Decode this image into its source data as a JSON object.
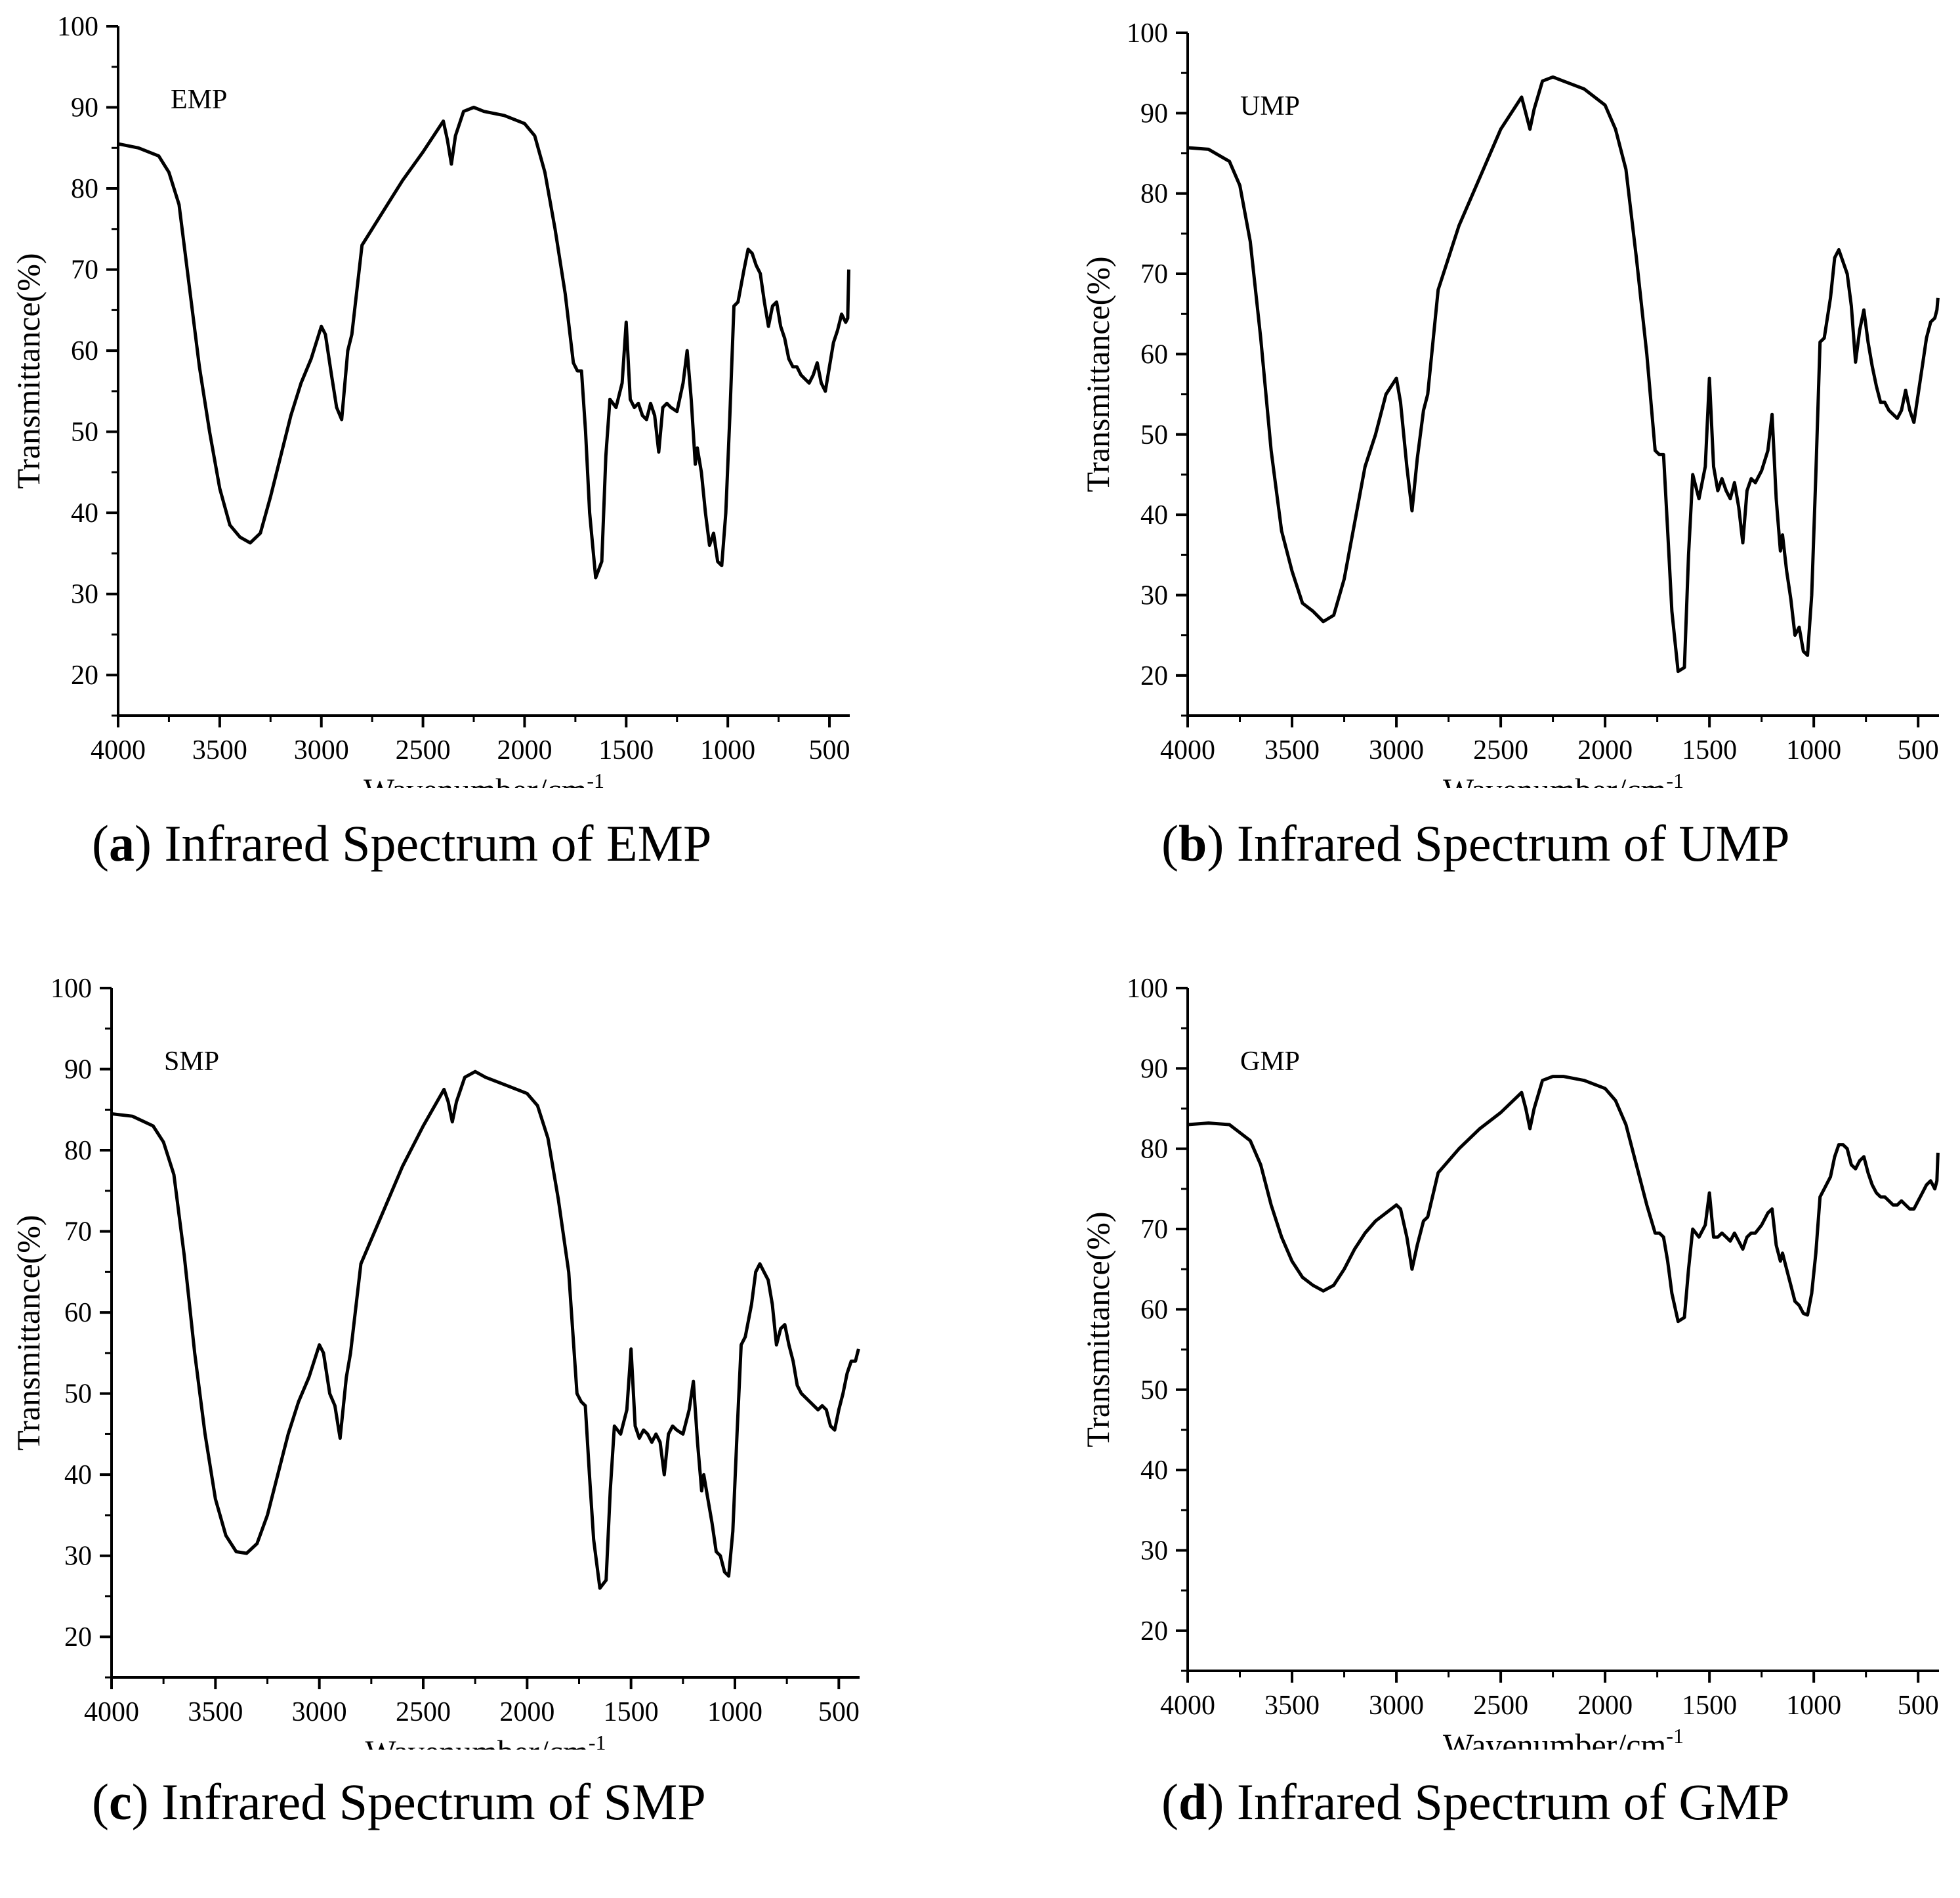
{
  "chart_data": [
    {
      "type": "line",
      "panel_letter": "a",
      "caption_text": " Infrared Spectrum of EMP",
      "paren_open": "(",
      "paren_close": ")",
      "series_label": "EMP",
      "xlabel": "Wavenumber/cm",
      "xlabel_sup": "-1",
      "ylabel": "Transmittance(%)",
      "xlim": [
        4000,
        400
      ],
      "ylim": [
        15,
        100
      ],
      "xticks": [
        4000,
        3500,
        3000,
        2500,
        2000,
        1500,
        1000,
        500
      ],
      "yticks": [
        20,
        30,
        40,
        50,
        60,
        70,
        80,
        90,
        100
      ],
      "x": [
        4000,
        3900,
        3800,
        3750,
        3700,
        3650,
        3600,
        3550,
        3500,
        3450,
        3400,
        3350,
        3300,
        3250,
        3200,
        3150,
        3100,
        3050,
        3000,
        2980,
        2950,
        2925,
        2900,
        2870,
        2850,
        2800,
        2700,
        2600,
        2500,
        2400,
        2380,
        2360,
        2340,
        2300,
        2250,
        2200,
        2100,
        2000,
        1950,
        1900,
        1850,
        1800,
        1760,
        1740,
        1720,
        1700,
        1680,
        1650,
        1620,
        1600,
        1580,
        1550,
        1520,
        1500,
        1480,
        1460,
        1440,
        1420,
        1400,
        1380,
        1360,
        1340,
        1320,
        1300,
        1280,
        1250,
        1220,
        1200,
        1180,
        1160,
        1150,
        1130,
        1110,
        1090,
        1070,
        1050,
        1030,
        1010,
        990,
        970,
        950,
        920,
        900,
        880,
        860,
        840,
        820,
        800,
        780,
        760,
        740,
        720,
        700,
        680,
        660,
        640,
        620,
        600,
        580,
        560,
        540,
        520,
        500,
        480,
        460,
        440,
        420,
        410,
        405
      ],
      "y": [
        85.5,
        85,
        84,
        82,
        78,
        68,
        58,
        50,
        43,
        38.5,
        37,
        36.3,
        37.5,
        42,
        47,
        52,
        56,
        59,
        63,
        62,
        57,
        53,
        51.5,
        60,
        62,
        73,
        77,
        81,
        84.5,
        88.3,
        86,
        83,
        86.5,
        89.5,
        90,
        89.5,
        89,
        88,
        86.5,
        82,
        75,
        67,
        58.5,
        57.5,
        57.5,
        50,
        40,
        32,
        34,
        47,
        54,
        53,
        56,
        63.5,
        54,
        53,
        53.5,
        52,
        51.5,
        53.5,
        52,
        47.5,
        53,
        53.5,
        53,
        52.5,
        56,
        60,
        54,
        46,
        48,
        45,
        40,
        36,
        37.5,
        34,
        33.5,
        40,
        52,
        65.5,
        66,
        70,
        72.5,
        72,
        70.5,
        69.5,
        66,
        63,
        65.5,
        66,
        63,
        61.5,
        59,
        58,
        58,
        57,
        56.5,
        56,
        57,
        58.5,
        56,
        55,
        58,
        61,
        62.5,
        64.5,
        63.5,
        64,
        70
      ]
    },
    {
      "type": "line",
      "panel_letter": "b",
      "caption_text": " Infrared Spectrum of UMP",
      "paren_open": "(",
      "paren_close": ")",
      "series_label": "UMP",
      "xlabel": "Wavenumber/cm",
      "xlabel_sup": "-1",
      "ylabel": "Transmittance(%)",
      "xlim": [
        4000,
        400
      ],
      "ylim": [
        15,
        100
      ],
      "xticks": [
        4000,
        3500,
        3000,
        2500,
        2000,
        1500,
        1000,
        500
      ],
      "yticks": [
        20,
        30,
        40,
        50,
        60,
        70,
        80,
        90,
        100
      ],
      "x": [
        4000,
        3900,
        3800,
        3750,
        3700,
        3650,
        3600,
        3550,
        3500,
        3450,
        3400,
        3350,
        3300,
        3250,
        3200,
        3150,
        3100,
        3050,
        3000,
        2980,
        2950,
        2925,
        2900,
        2870,
        2850,
        2800,
        2700,
        2600,
        2500,
        2400,
        2380,
        2360,
        2340,
        2300,
        2250,
        2200,
        2100,
        2000,
        1950,
        1900,
        1850,
        1800,
        1760,
        1740,
        1720,
        1700,
        1680,
        1650,
        1620,
        1600,
        1580,
        1550,
        1520,
        1500,
        1480,
        1460,
        1440,
        1420,
        1400,
        1380,
        1360,
        1340,
        1320,
        1300,
        1280,
        1250,
        1220,
        1200,
        1180,
        1160,
        1150,
        1130,
        1110,
        1090,
        1070,
        1050,
        1030,
        1010,
        990,
        970,
        950,
        920,
        900,
        880,
        860,
        840,
        820,
        800,
        780,
        760,
        740,
        720,
        700,
        680,
        660,
        640,
        620,
        600,
        580,
        560,
        540,
        520,
        500,
        480,
        460,
        440,
        420,
        410,
        405
      ],
      "y": [
        85.7,
        85.5,
        84,
        81,
        74,
        62,
        48,
        38,
        33,
        29,
        28,
        26.7,
        27.5,
        32,
        39,
        46,
        50,
        55,
        57,
        54,
        46,
        40.5,
        47,
        53,
        55,
        68,
        76,
        82,
        88,
        92,
        90,
        88,
        90.5,
        94,
        94.5,
        94,
        93,
        91,
        88,
        83,
        72,
        60,
        48,
        47.5,
        47.5,
        38,
        28,
        20.5,
        21,
        35,
        45,
        42,
        46,
        57,
        46,
        43,
        44.5,
        43,
        42,
        44,
        41,
        36.5,
        43,
        44.5,
        44,
        45.5,
        48,
        52.5,
        42,
        35.5,
        37.5,
        33,
        29.5,
        25,
        26,
        23,
        22.5,
        30,
        45,
        61.5,
        62,
        67,
        72,
        73,
        71.5,
        70,
        66,
        59,
        63,
        65.5,
        61.5,
        58.5,
        56,
        54,
        54,
        53,
        52.5,
        52,
        53,
        55.5,
        53,
        51.5,
        55,
        58.5,
        62,
        64,
        64.5,
        65.5,
        67
      ]
    },
    {
      "type": "line",
      "panel_letter": "c",
      "caption_text": " Infrared Spectrum of SMP",
      "paren_open": "(",
      "paren_close": ")",
      "series_label": "SMP",
      "xlabel": "Wavenumber/cm",
      "xlabel_sup": "-1",
      "ylabel": "Transmittance(%)",
      "xlim": [
        4000,
        400
      ],
      "ylim": [
        15,
        100
      ],
      "xticks": [
        4000,
        3500,
        3000,
        2500,
        2000,
        1500,
        1000,
        500
      ],
      "yticks": [
        20,
        30,
        40,
        50,
        60,
        70,
        80,
        90,
        100
      ],
      "x": [
        4000,
        3900,
        3800,
        3750,
        3700,
        3650,
        3600,
        3550,
        3500,
        3450,
        3400,
        3350,
        3300,
        3250,
        3200,
        3150,
        3100,
        3050,
        3000,
        2980,
        2950,
        2925,
        2900,
        2870,
        2850,
        2800,
        2700,
        2600,
        2500,
        2400,
        2380,
        2360,
        2340,
        2300,
        2250,
        2200,
        2100,
        2000,
        1950,
        1900,
        1850,
        1800,
        1760,
        1740,
        1720,
        1700,
        1680,
        1650,
        1620,
        1600,
        1580,
        1550,
        1520,
        1500,
        1480,
        1460,
        1440,
        1420,
        1400,
        1380,
        1360,
        1340,
        1320,
        1300,
        1280,
        1250,
        1220,
        1200,
        1180,
        1160,
        1150,
        1130,
        1110,
        1090,
        1070,
        1050,
        1030,
        1010,
        990,
        970,
        950,
        920,
        900,
        880,
        860,
        840,
        820,
        800,
        780,
        760,
        740,
        720,
        700,
        680,
        660,
        640,
        620,
        600,
        580,
        560,
        540,
        520,
        500,
        480,
        460,
        440,
        420,
        410,
        405
      ],
      "y": [
        84.5,
        84.2,
        83,
        81,
        77,
        67,
        55,
        45,
        37,
        32.5,
        30.5,
        30.3,
        31.5,
        35,
        40,
        45,
        49,
        52,
        56,
        55,
        50,
        48.5,
        44.5,
        52,
        55,
        66,
        72,
        78,
        83,
        87.5,
        86,
        83.5,
        86,
        89,
        89.7,
        89,
        88,
        87,
        85.5,
        81.5,
        74,
        65,
        50,
        49,
        48.5,
        40,
        32,
        26,
        27,
        38,
        46,
        45,
        48,
        55.5,
        46,
        44.5,
        45.5,
        45,
        44,
        45,
        44,
        40,
        45,
        46,
        45.5,
        45,
        48,
        51.5,
        44,
        38,
        40,
        37,
        34,
        30.5,
        30,
        28,
        27.5,
        33,
        45,
        56,
        57,
        61,
        65,
        66,
        65,
        64,
        61,
        56,
        58,
        58.5,
        56,
        54,
        51,
        50,
        49.5,
        49,
        48.5,
        48,
        48.5,
        48,
        46,
        45.5,
        48,
        50,
        52.5,
        54,
        54,
        55,
        55.5
      ]
    },
    {
      "type": "line",
      "panel_letter": "d",
      "caption_text": " Infrared Spectrum of GMP",
      "paren_open": "(",
      "paren_close": ")",
      "series_label": "GMP",
      "xlabel": "Wavenumber/cm",
      "xlabel_sup": "-1",
      "ylabel": "Transmittance(%)",
      "xlim": [
        4000,
        400
      ],
      "ylim": [
        15,
        100
      ],
      "xticks": [
        4000,
        3500,
        3000,
        2500,
        2000,
        1500,
        1000,
        500
      ],
      "yticks": [
        20,
        30,
        40,
        50,
        60,
        70,
        80,
        90,
        100
      ],
      "x": [
        4000,
        3900,
        3800,
        3750,
        3700,
        3650,
        3600,
        3550,
        3500,
        3450,
        3400,
        3350,
        3300,
        3250,
        3200,
        3150,
        3100,
        3050,
        3000,
        2980,
        2950,
        2925,
        2900,
        2870,
        2850,
        2800,
        2700,
        2600,
        2500,
        2400,
        2380,
        2360,
        2340,
        2300,
        2250,
        2200,
        2100,
        2000,
        1950,
        1900,
        1850,
        1800,
        1760,
        1740,
        1720,
        1700,
        1680,
        1650,
        1620,
        1600,
        1580,
        1550,
        1520,
        1500,
        1480,
        1460,
        1440,
        1420,
        1400,
        1380,
        1360,
        1340,
        1320,
        1300,
        1280,
        1250,
        1220,
        1200,
        1180,
        1160,
        1150,
        1130,
        1110,
        1090,
        1070,
        1050,
        1030,
        1010,
        990,
        970,
        950,
        920,
        900,
        880,
        860,
        840,
        820,
        800,
        780,
        760,
        740,
        720,
        700,
        680,
        660,
        640,
        620,
        600,
        580,
        560,
        540,
        520,
        500,
        480,
        460,
        440,
        420,
        410,
        405
      ],
      "y": [
        83,
        83.2,
        83,
        82,
        81,
        78,
        73,
        69,
        66,
        64,
        63,
        62.3,
        63,
        65,
        67.5,
        69.5,
        71,
        72,
        73,
        72.5,
        69,
        65,
        68,
        71,
        71.5,
        77,
        80,
        82.5,
        84.5,
        87,
        85,
        82.5,
        85,
        88.5,
        89,
        89,
        88.5,
        87.5,
        86,
        83,
        78,
        73,
        69.5,
        69.5,
        69,
        66,
        62,
        58.5,
        59,
        65,
        70,
        69,
        70.5,
        74.5,
        69,
        69,
        69.5,
        69,
        68.5,
        69.5,
        68.5,
        67.5,
        69,
        69.5,
        69.5,
        70.5,
        72,
        72.5,
        68,
        66,
        67,
        65,
        63,
        61,
        60.5,
        59.5,
        59.3,
        62,
        67,
        74,
        75,
        76.5,
        79,
        80.5,
        80.5,
        80,
        78,
        77.5,
        78.5,
        79,
        77,
        75.5,
        74.5,
        74,
        74,
        73.5,
        73,
        73,
        73.5,
        73,
        72.5,
        72.5,
        73.5,
        74.5,
        75.5,
        76,
        75,
        76,
        79.5
      ]
    }
  ]
}
